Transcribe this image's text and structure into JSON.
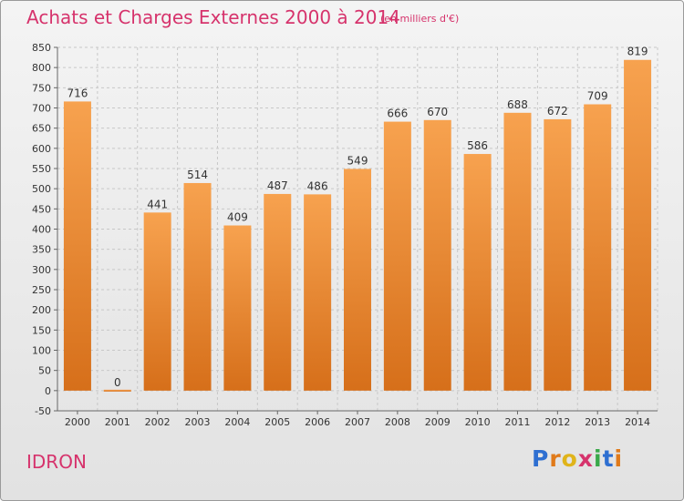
{
  "header": {
    "title": "Achats et Charges Externes 2000 à 2014",
    "subtitle": "(en milliers d'€)"
  },
  "footer": {
    "commune": "IDRON",
    "logo_text": "Proxiti"
  },
  "colors": {
    "bar_top": "#f7a24f",
    "bar_bottom": "#d66f1a",
    "title": "#d6336c",
    "grid": "#c8c8c8"
  },
  "chart_data": {
    "type": "bar",
    "title": "Achats et Charges Externes 2000 à 2014",
    "subtitle": "(en milliers d'€)",
    "xlabel": "",
    "ylabel": "",
    "categories": [
      "2000",
      "2001",
      "2002",
      "2003",
      "2004",
      "2005",
      "2006",
      "2007",
      "2008",
      "2009",
      "2010",
      "2011",
      "2012",
      "2013",
      "2014"
    ],
    "values": [
      716,
      0,
      441,
      514,
      409,
      487,
      486,
      549,
      666,
      670,
      586,
      688,
      672,
      709,
      819
    ],
    "ylim": [
      -50,
      850
    ],
    "yticks": [
      -50,
      0,
      50,
      100,
      150,
      200,
      250,
      300,
      350,
      400,
      450,
      500,
      550,
      600,
      650,
      700,
      750,
      800,
      850
    ],
    "grid": true,
    "legend": "none"
  }
}
